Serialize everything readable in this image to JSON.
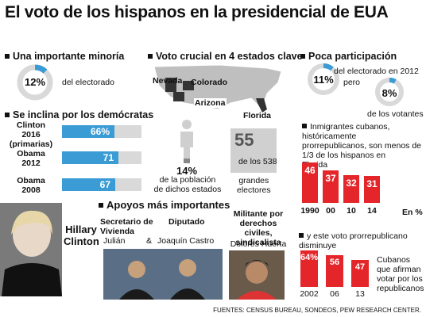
{
  "title": "El voto de los hispanos en la presidencial de EUA",
  "minority": {
    "heading": "Una importante minoría",
    "percent_label": "12%",
    "percent": 12,
    "text": "del electorado"
  },
  "democrats": {
    "heading": "Se inclina por los demócratas",
    "bars": [
      {
        "label": "Clinton\n2016\n(primarias)",
        "value_label": "66%",
        "value": 66
      },
      {
        "label": "Obama\n2012",
        "value_label": "71",
        "value": 71
      },
      {
        "label": "Obama\n2008",
        "value_label": "67",
        "value": 67
      }
    ]
  },
  "states": {
    "heading": "Voto crucial en 4 estados clave",
    "names": [
      "Nevada",
      "Colorado",
      "Arizona",
      "Florida"
    ],
    "population_percent_label": "14%",
    "population_percent": 14,
    "population_text": "de la población\nde dichos estados",
    "electors_value": "55",
    "electors_of": "de los 538",
    "electors_text": "grandes\nelectores"
  },
  "participation": {
    "heading": "Poca participación",
    "ring1_label": "11%",
    "ring1_percent": 11,
    "ring1_text": "del electorado en 2012",
    "pero": "pero",
    "ring2_label": "8%",
    "ring2_percent": 8,
    "ring2_text": "de los votantes"
  },
  "cubans": {
    "text": "Inmigrantes cubanos,\nhistóricamente\nprorrepublicanos, son menos de\n1/3 de los hispanos en\nFlorida",
    "bars": [
      {
        "year": "1990",
        "value": 46
      },
      {
        "year": "00",
        "value": 37
      },
      {
        "year": "10",
        "value": 32
      },
      {
        "year": "14",
        "value": 31
      }
    ],
    "unit": "En %",
    "vote_text": "y este voto prorrepublicano\ndisminuye",
    "vote_bars": [
      {
        "year": "2002",
        "value": 64,
        "value_label": "64%"
      },
      {
        "year": "06",
        "value": 56,
        "value_label": "56"
      },
      {
        "year": "13",
        "value": 47,
        "value_label": "47"
      }
    ],
    "vote_legend": "Cubanos\nque afirman\nvotar por los\nrepublicanos"
  },
  "support": {
    "heading": "Apoyos más importantes",
    "clinton": "Hillary\nClinton",
    "role1": "Secretario de\nVivienda",
    "name1": "Julián",
    "amp": "&",
    "role2": "Diputado",
    "name2": "Joaquín Castro",
    "role3": "Militante por\nderechos civiles,\nsindicalista",
    "name3": "Dolores Huerta"
  },
  "footer": "FUENTES: CENSUS BUREAU, SONDEOS, PEW RESEARCH CENTER.",
  "colors": {
    "blue": "#3a9bd5",
    "red": "#e4262b",
    "gray": "#d9d9d9"
  }
}
